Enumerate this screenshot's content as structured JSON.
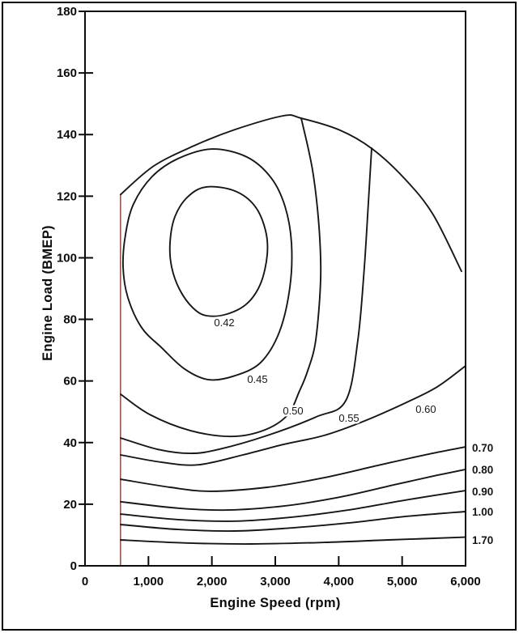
{
  "figure": {
    "background": "#ffffff",
    "border_color": "#000000"
  },
  "chart_data": {
    "type": "line",
    "chart_subtype": "contour_map",
    "description": "Engine brake-specific fuel consumption contour map over speed and load",
    "title": "",
    "xlabel": "Engine Speed (rpm)",
    "ylabel": "Engine Load (BMEP)",
    "xlim": [
      0,
      6000
    ],
    "ylim": [
      0,
      180
    ],
    "grid": false,
    "legend": "none",
    "x_ticks": [
      0,
      1000,
      2000,
      3000,
      4000,
      5000,
      6000
    ],
    "x_tick_labels": [
      "0",
      "1,000",
      "2,000",
      "3,000",
      "4,000",
      "5,000",
      "6,000"
    ],
    "y_ticks": [
      0,
      20,
      40,
      60,
      80,
      100,
      120,
      140,
      160,
      180
    ],
    "y_tick_labels": [
      "0",
      "20",
      "40",
      "60",
      "80",
      "100",
      "120",
      "140",
      "160",
      "180"
    ],
    "colors": {
      "contour_line": "#161616",
      "axis": "#0b0b0b",
      "min_speed_line": "#7b2b25",
      "label_text": "#161616"
    },
    "min_speed_line": {
      "rpm": 560,
      "load_bottom": 0,
      "load_top": 120.5
    },
    "envelope": {
      "name": "maximum-load-envelope",
      "points": [
        [
          560,
          120.5
        ],
        [
          1085,
          129.8
        ],
        [
          1723,
          136.4
        ],
        [
          2362,
          141.6
        ],
        [
          3128,
          146.1
        ],
        [
          3409,
          145.3
        ],
        [
          4021,
          141.4
        ],
        [
          4532,
          135.3
        ],
        [
          5043,
          125.6
        ],
        [
          5489,
          114.0
        ],
        [
          5936,
          95.6
        ]
      ]
    },
    "contours": [
      {
        "level": "0.42",
        "closed": true,
        "label_outside": false,
        "label": {
          "rpm": 2196,
          "load": 79.1
        },
        "points": [
          [
            1915,
            123.0
          ],
          [
            2362,
            121.7
          ],
          [
            2681,
            116.7
          ],
          [
            2847,
            108.8
          ],
          [
            2872,
            100.9
          ],
          [
            2770,
            91.7
          ],
          [
            2553,
            85.1
          ],
          [
            2234,
            81.7
          ],
          [
            1915,
            81.2
          ],
          [
            1698,
            83.8
          ],
          [
            1494,
            89.6
          ],
          [
            1366,
            97.0
          ],
          [
            1340,
            104.8
          ],
          [
            1417,
            113.3
          ],
          [
            1621,
            119.8
          ]
        ]
      },
      {
        "level": "0.45",
        "closed": true,
        "label_outside": false,
        "label": {
          "rpm": 2719,
          "load": 60.7
        },
        "points": [
          [
            2004,
            135.3
          ],
          [
            2553,
            132.7
          ],
          [
            2936,
            125.9
          ],
          [
            3153,
            116.7
          ],
          [
            3255,
            104.8
          ],
          [
            3230,
            90.4
          ],
          [
            3064,
            75.9
          ],
          [
            2770,
            66.0
          ],
          [
            2362,
            61.7
          ],
          [
            1953,
            60.4
          ],
          [
            1570,
            63.9
          ],
          [
            1213,
            70.7
          ],
          [
            894,
            77.3
          ],
          [
            677,
            87.0
          ],
          [
            600,
            97.0
          ],
          [
            638,
            107.5
          ],
          [
            766,
            117.5
          ],
          [
            1060,
            126.4
          ],
          [
            1468,
            132.2
          ]
        ]
      },
      {
        "level": "0.50",
        "closed": false,
        "label_outside": false,
        "label": {
          "rpm": 3281,
          "load": 50.5
        },
        "points": [
          [
            3409,
            145.3
          ],
          [
            3587,
            128.5
          ],
          [
            3689,
            110.1
          ],
          [
            3715,
            93.0
          ],
          [
            3638,
            73.3
          ],
          [
            3511,
            63.3
          ],
          [
            3383,
            56.8
          ],
          [
            3191,
            48.9
          ],
          [
            2809,
            43.9
          ],
          [
            2298,
            42.0
          ],
          [
            1660,
            43.9
          ],
          [
            1021,
            49.1
          ],
          [
            562,
            55.7
          ]
        ]
      },
      {
        "level": "0.55",
        "closed": false,
        "label_outside": false,
        "label": {
          "rpm": 4162,
          "load": 48.1
        },
        "points": [
          [
            4519,
            135.6
          ],
          [
            4468,
            118.0
          ],
          [
            4404,
            97.0
          ],
          [
            4302,
            73.3
          ],
          [
            4111,
            53.6
          ],
          [
            3638,
            48.3
          ],
          [
            2872,
            42.3
          ],
          [
            2106,
            37.8
          ],
          [
            1660,
            36.5
          ],
          [
            1149,
            37.8
          ],
          [
            562,
            41.5
          ]
        ]
      },
      {
        "level": "0.60",
        "closed": false,
        "label_outside": false,
        "label": {
          "rpm": 5374,
          "load": 51.0
        },
        "points": [
          [
            562,
            36.0
          ],
          [
            1213,
            33.6
          ],
          [
            1787,
            32.8
          ],
          [
            2489,
            36.0
          ],
          [
            3128,
            39.4
          ],
          [
            3766,
            42.3
          ],
          [
            4404,
            47.0
          ],
          [
            5043,
            52.8
          ],
          [
            5553,
            58.1
          ],
          [
            6000,
            64.9
          ]
        ]
      },
      {
        "level": "0.70",
        "closed": false,
        "label_outside": true,
        "label": {
          "load": 38.4
        },
        "points": [
          [
            562,
            28.1
          ],
          [
            1340,
            25.5
          ],
          [
            1979,
            24.2
          ],
          [
            2872,
            25.5
          ],
          [
            3766,
            28.6
          ],
          [
            4660,
            32.8
          ],
          [
            5426,
            36.3
          ],
          [
            6000,
            38.6
          ]
        ]
      },
      {
        "level": "0.80",
        "closed": false,
        "label_outside": true,
        "label": {
          "load": 31.3
        },
        "points": [
          [
            562,
            20.8
          ],
          [
            1468,
            18.7
          ],
          [
            2234,
            18.1
          ],
          [
            3128,
            19.4
          ],
          [
            4021,
            22.3
          ],
          [
            4915,
            26.5
          ],
          [
            5553,
            29.4
          ],
          [
            6000,
            31.3
          ]
        ]
      },
      {
        "level": "0.90",
        "closed": false,
        "label_outside": true,
        "label": {
          "load": 24.2
        },
        "points": [
          [
            562,
            16.8
          ],
          [
            1468,
            15.0
          ],
          [
            2362,
            14.5
          ],
          [
            3255,
            15.8
          ],
          [
            4149,
            18.1
          ],
          [
            5043,
            21.3
          ],
          [
            6000,
            24.4
          ]
        ]
      },
      {
        "level": "1.00",
        "closed": false,
        "label_outside": true,
        "label": {
          "load": 17.6
        },
        "points": [
          [
            562,
            13.4
          ],
          [
            1468,
            11.8
          ],
          [
            2362,
            11.3
          ],
          [
            3255,
            12.3
          ],
          [
            4149,
            13.9
          ],
          [
            5043,
            16.0
          ],
          [
            6000,
            17.6
          ]
        ]
      },
      {
        "level": "1.70",
        "closed": false,
        "label_outside": true,
        "label": {
          "load": 8.4
        },
        "points": [
          [
            562,
            8.4
          ],
          [
            1596,
            7.4
          ],
          [
            2617,
            7.1
          ],
          [
            3766,
            7.6
          ],
          [
            4787,
            8.4
          ],
          [
            6000,
            9.3
          ]
        ]
      }
    ]
  }
}
